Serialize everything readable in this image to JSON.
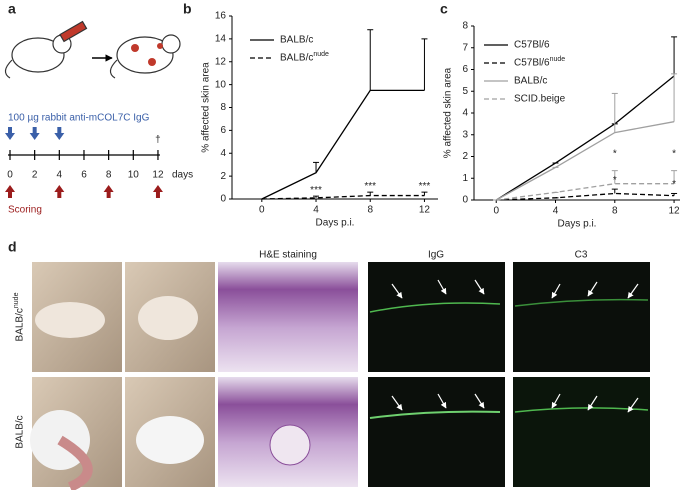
{
  "panel_labels": [
    "a",
    "b",
    "c",
    "d"
  ],
  "timeline": {
    "injection_text": "100 µg rabbit anti-mCOL7C IgG",
    "ticks": [
      0,
      2,
      4,
      6,
      8,
      10,
      12
    ],
    "unit": "days",
    "injection_days": [
      0,
      2,
      4
    ],
    "scoring_days": [
      0,
      4,
      8,
      12
    ],
    "scoring_text": "Scoring",
    "end_day": 12,
    "end_mark": "†"
  },
  "chart_data": [
    {
      "type": "line",
      "x": [
        0,
        4,
        8,
        12
      ],
      "xlim": [
        -2.2,
        13
      ],
      "xticks": [
        0,
        4,
        8,
        12
      ],
      "ylim": [
        0,
        16
      ],
      "yticks": [
        0,
        2,
        4,
        6,
        8,
        10,
        12,
        14,
        16
      ],
      "xlabel": "Days p.i.",
      "ylabel": "% affected skin area",
      "series": [
        {
          "name": "BALB/c",
          "color": "#000000",
          "style": "solid",
          "values": [
            0,
            2.3,
            9.5,
            9.5
          ],
          "errors": [
            0,
            0.9,
            5.3,
            4.5
          ]
        },
        {
          "name": "BALB/c",
          "name_sup": "nude",
          "color": "#000000",
          "style": "dashed",
          "values": [
            0,
            0.1,
            0.3,
            0.3
          ],
          "errors": [
            0,
            0.15,
            0.3,
            0.3
          ]
        }
      ],
      "annotations": [
        {
          "text": "***",
          "x": 4
        },
        {
          "text": "***",
          "x": 8
        },
        {
          "text": "***",
          "x": 12
        }
      ]
    },
    {
      "type": "line",
      "x": [
        0,
        4,
        8,
        12
      ],
      "xlim": [
        -1.5,
        12.4
      ],
      "xticks": [
        0,
        4,
        8,
        12
      ],
      "ylim": [
        0,
        8
      ],
      "yticks": [
        0,
        1,
        2,
        3,
        4,
        5,
        6,
        7,
        8
      ],
      "xlabel": "Days p.i.",
      "ylabel": "% affected skin area",
      "series": [
        {
          "name": "C57Bl/6",
          "color": "#000000",
          "style": "solid",
          "values": [
            0,
            1.7,
            3.5,
            5.7
          ],
          "errors": [
            0,
            0,
            0,
            1.8
          ]
        },
        {
          "name": "C57Bl/6",
          "name_sup": "nude",
          "color": "#000000",
          "style": "dashed",
          "values": [
            0,
            0.1,
            0.3,
            0.2
          ],
          "errors": [
            0,
            0,
            0.2,
            0.1
          ]
        },
        {
          "name": "BALB/c",
          "color": "#a0a0a0",
          "style": "solid",
          "values": [
            0,
            1.5,
            3.1,
            3.6
          ],
          "errors": [
            0,
            0,
            1.8,
            2.2
          ]
        },
        {
          "name": "SCID.beige",
          "color": "#a0a0a0",
          "style": "dashed",
          "values": [
            0,
            0.35,
            0.75,
            0.75
          ],
          "errors": [
            0,
            0,
            0.6,
            0.6
          ]
        }
      ],
      "annotations": [
        {
          "text": "*",
          "x": 8
        },
        {
          "text": "*",
          "x": 8
        },
        {
          "text": "*",
          "x": 12
        },
        {
          "text": "*",
          "x": 12
        }
      ]
    }
  ],
  "figure_d": {
    "columns": [
      "H&E staining",
      "IgG",
      "C3"
    ],
    "rows": [
      {
        "label": "BALB/c",
        "label_sup": "nude"
      },
      {
        "label": "BALB/c"
      }
    ]
  }
}
